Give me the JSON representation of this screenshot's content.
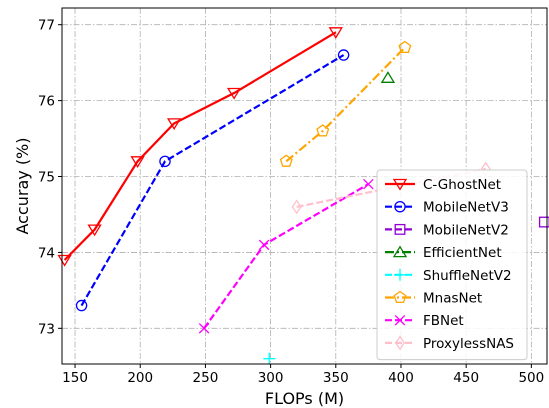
{
  "chart_data": {
    "type": "line",
    "title": "",
    "xlabel": "FLOPs (M)",
    "ylabel": "Accuray (%)",
    "xlim": [
      140,
      512
    ],
    "ylim": [
      72.53,
      77.22
    ],
    "xticks": [
      150,
      200,
      250,
      300,
      350,
      400,
      450,
      500
    ],
    "yticks": [
      73,
      74,
      75,
      76,
      77
    ],
    "grid": true,
    "legend_position": "lower-right",
    "series": [
      {
        "name": "C-GhostNet",
        "color": "#ff0000",
        "marker": "triangle-down",
        "line": "solid",
        "x": [
          142,
          165,
          198,
          226,
          272,
          350
        ],
        "y": [
          73.9,
          74.3,
          75.2,
          75.7,
          76.1,
          76.9
        ]
      },
      {
        "name": "MobileNetV3",
        "color": "#0000ff",
        "marker": "circle",
        "line": "dashed",
        "x": [
          155,
          219,
          356
        ],
        "y": [
          73.3,
          75.2,
          76.6
        ]
      },
      {
        "name": "MobileNetV2",
        "color": "#9400d3",
        "marker": "square",
        "line": "dashed",
        "x": [
          510
        ],
        "y": [
          74.4
        ]
      },
      {
        "name": "EfficientNet",
        "color": "#008000",
        "marker": "triangle-up",
        "line": "dashdot",
        "x": [
          390
        ],
        "y": [
          76.3
        ]
      },
      {
        "name": "ShuffleNetV2",
        "color": "#00ffff",
        "marker": "plus",
        "line": "dashed",
        "x": [
          299
        ],
        "y": [
          72.6
        ]
      },
      {
        "name": "MnasNet",
        "color": "#ffa500",
        "marker": "pentagon",
        "line": "dashdot",
        "x": [
          312,
          340,
          403
        ],
        "y": [
          75.2,
          75.6,
          76.7
        ]
      },
      {
        "name": "FBNet",
        "color": "#ff00ff",
        "marker": "x",
        "line": "dashed",
        "x": [
          249,
          295,
          375
        ],
        "y": [
          73.0,
          74.1,
          74.9
        ]
      },
      {
        "name": "ProxylessNAS",
        "color": "#ffc0cb",
        "marker": "diamond",
        "line": "dashed",
        "x": [
          320,
          465
        ],
        "y": [
          74.6,
          75.1
        ]
      }
    ]
  }
}
